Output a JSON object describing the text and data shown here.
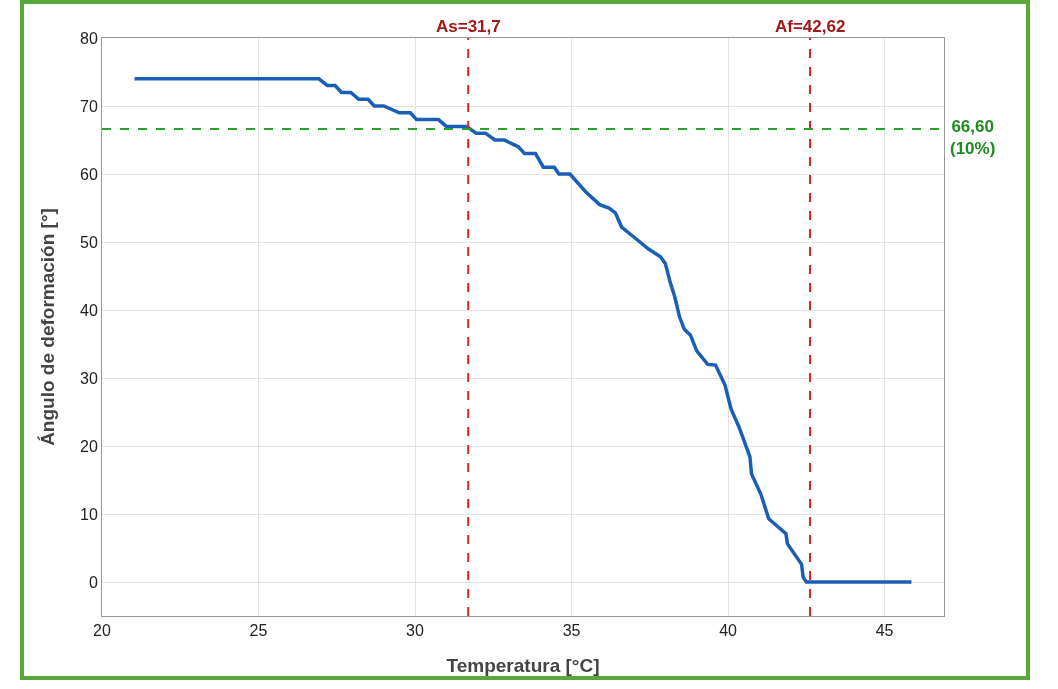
{
  "chart_data": {
    "type": "line",
    "xlabel": "Temperatura [°C]",
    "ylabel": "Ángulo de deformación [°]",
    "xlim": [
      20,
      46.9
    ],
    "xticks": [
      20,
      25,
      30,
      35,
      40,
      45
    ],
    "ylim": [
      -5,
      80
    ],
    "yticks": [
      0,
      10,
      20,
      30,
      40,
      50,
      60,
      70,
      80
    ],
    "grid": true,
    "marker": "none",
    "line_style": "solid",
    "series": [
      {
        "color": "#1a5fb4",
        "x": [
          21.04,
          26.93,
          27.2,
          27.45,
          27.65,
          27.95,
          28.2,
          28.5,
          28.7,
          29.0,
          29.5,
          29.85,
          30.05,
          30.75,
          31.0,
          31.65,
          31.95,
          32.25,
          32.55,
          32.85,
          33.3,
          33.5,
          33.85,
          34.1,
          34.45,
          34.6,
          34.95,
          35.45,
          35.9,
          36.2,
          36.4,
          36.6,
          37.0,
          37.45,
          37.85,
          38.0,
          38.15,
          38.3,
          38.45,
          38.6,
          38.8,
          39.0,
          39.35,
          39.6,
          39.9,
          40.1,
          40.35,
          40.7,
          40.75,
          41.05,
          41.3,
          41.85,
          41.9,
          42.35,
          42.4,
          42.5,
          45.86
        ],
        "values": [
          74,
          74,
          73,
          73,
          72,
          72,
          71,
          71,
          70,
          70,
          69,
          69,
          68,
          68,
          67,
          67,
          66,
          66,
          65,
          65,
          64,
          63,
          63,
          61,
          61,
          60,
          60,
          57.4,
          55.5,
          55,
          54.3,
          52.2,
          50.7,
          49,
          47.8,
          46.8,
          44.1,
          41.9,
          39,
          37.2,
          36.3,
          34,
          32,
          31.9,
          29,
          25.4,
          22.8,
          18.4,
          15.9,
          12.9,
          9.3,
          7.1,
          5.6,
          2.6,
          0.7,
          0,
          0
        ]
      }
    ],
    "ref_lines": [
      {
        "axis": "x",
        "value": 31.7,
        "label": "As=31,7",
        "color": "#d62728",
        "line_style": "dashed"
      },
      {
        "axis": "x",
        "value": 42.62,
        "label": "Af=42,62",
        "color": "#d62728",
        "line_style": "dashed"
      },
      {
        "axis": "y",
        "value": 66.6,
        "label": "66,60\n(10%)",
        "color": "#2ca02c",
        "line_style": "dashed"
      }
    ]
  }
}
